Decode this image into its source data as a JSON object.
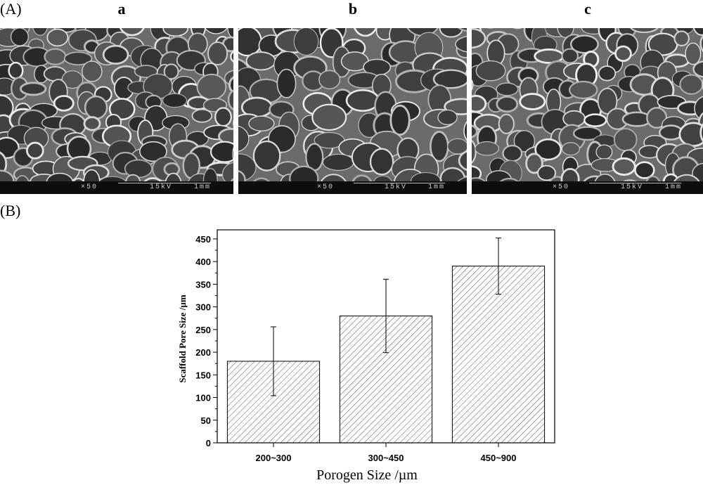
{
  "panels": {
    "A_label": "(A)",
    "B_label": "(B)",
    "sem": [
      {
        "label": "a",
        "magnification": "×50",
        "voltage": "15kV",
        "scale": "1mm"
      },
      {
        "label": "b",
        "magnification": "×50",
        "voltage": "15kV",
        "scale": "1mm"
      },
      {
        "label": "c",
        "magnification": "×50",
        "voltage": "15kV",
        "scale": "1mm"
      }
    ]
  },
  "chart_data": {
    "type": "bar",
    "categories": [
      "200~300",
      "300~450",
      "450~900"
    ],
    "values": [
      180,
      280,
      390
    ],
    "errors": [
      76,
      81,
      62
    ],
    "title": "",
    "xlabel": "Porogen Size /µm",
    "ylabel": "Scaffold Pore Size /µm",
    "ylim": [
      0,
      470
    ],
    "yticks": [
      0,
      50,
      100,
      150,
      200,
      250,
      300,
      350,
      400,
      450
    ],
    "grid": false,
    "bar_fill": "diagonal hatch",
    "colors": {
      "bar_edge": "#000000",
      "hatch": "#555555"
    }
  }
}
